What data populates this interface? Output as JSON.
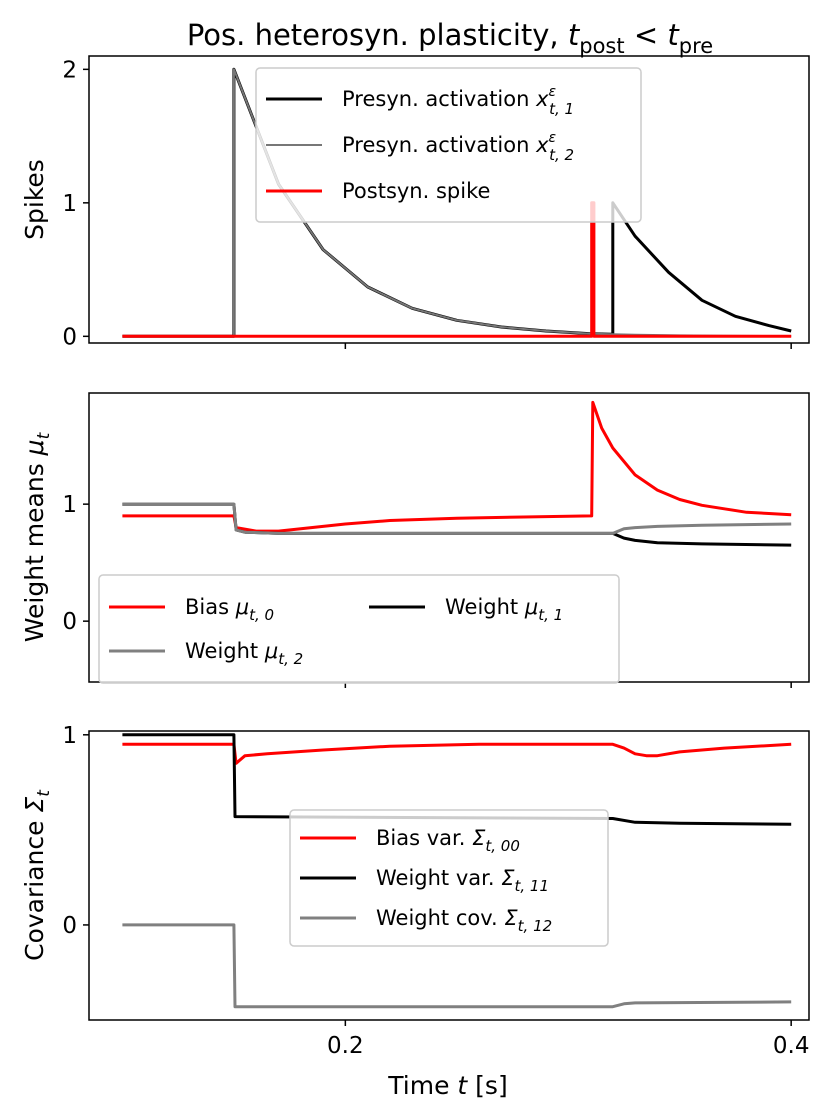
{
  "chart_data": {
    "type": "line",
    "title_parts": {
      "main": "Pos. heterosyn. plasticity, ",
      "t1": "t",
      "sub1": "post",
      "op": " < ",
      "t2": "t",
      "sub2": "pre"
    },
    "xlabel_parts": {
      "pre": "Time ",
      "var": "t",
      "post": " [s]"
    },
    "xlim": [
      0.085,
      0.408
    ],
    "xticks": [
      0.2,
      0.4
    ],
    "xtick_labels": [
      "0.2",
      "0.4"
    ],
    "panels": [
      {
        "id": "spikes",
        "ylabel": "Spikes",
        "ylim": [
          -0.05,
          2.1
        ],
        "yticks": [
          0,
          1,
          2
        ],
        "ytick_labels": [
          "0",
          "1",
          "2"
        ],
        "legend_position": "top-right",
        "legend_columns": 1,
        "series": [
          {
            "name": "Presyn. activation x^ε_{t,1}",
            "legend": {
              "base": "Presyn. activation ",
              "sym": "x",
              "sup": "ε",
              "sub": "t, 1"
            },
            "color": "#000000",
            "width": 3,
            "points": [
              [
                0.1,
                0
              ],
              [
                0.15,
                0
              ],
              [
                0.15,
                2
              ],
              [
                0.17,
                1.14
              ],
              [
                0.19,
                0.65
              ],
              [
                0.21,
                0.37
              ],
              [
                0.23,
                0.21
              ],
              [
                0.25,
                0.12
              ],
              [
                0.27,
                0.07
              ],
              [
                0.29,
                0.04
              ],
              [
                0.31,
                0.02
              ],
              [
                0.32,
                0.015
              ],
              [
                0.32,
                1.0
              ],
              [
                0.33,
                0.75
              ],
              [
                0.345,
                0.48
              ],
              [
                0.36,
                0.27
              ],
              [
                0.375,
                0.15
              ],
              [
                0.39,
                0.08
              ],
              [
                0.4,
                0.04
              ]
            ]
          },
          {
            "name": "Presyn. activation x^ε_{t,2}",
            "legend": {
              "base": "Presyn. activation ",
              "sym": "x",
              "sup": "ε",
              "sub": "t, 2"
            },
            "color": "#777777",
            "width": 2,
            "points": [
              [
                0.1,
                0
              ],
              [
                0.15,
                0
              ],
              [
                0.15,
                2
              ],
              [
                0.17,
                1.14
              ],
              [
                0.19,
                0.65
              ],
              [
                0.21,
                0.37
              ],
              [
                0.23,
                0.21
              ],
              [
                0.25,
                0.12
              ],
              [
                0.27,
                0.07
              ],
              [
                0.29,
                0.04
              ],
              [
                0.31,
                0.02
              ],
              [
                0.33,
                0.012
              ],
              [
                0.35,
                0.007
              ],
              [
                0.37,
                0.004
              ],
              [
                0.4,
                0.002
              ]
            ]
          },
          {
            "name": "Postsyn. spike",
            "legend": {
              "base": "Postsyn. spike"
            },
            "color": "#ff0000",
            "width": 3,
            "points": [
              [
                0.1,
                0
              ],
              [
                0.3105,
                0
              ],
              [
                0.3105,
                1
              ],
              [
                0.3115,
                1
              ],
              [
                0.3115,
                0
              ],
              [
                0.4,
                0
              ]
            ]
          }
        ]
      },
      {
        "id": "means",
        "ylabel_parts": {
          "pre": "Weight means ",
          "sym": "μ",
          "sub": "t"
        },
        "ylim": [
          -0.52,
          1.95
        ],
        "yticks": [
          0,
          1
        ],
        "ytick_labels": [
          "0",
          "1"
        ],
        "legend_position": "lower-left",
        "legend_columns": 2,
        "series": [
          {
            "name": "Bias μ_{t,0}",
            "legend": {
              "base": "Bias ",
              "sym": "μ",
              "sub": "t, 0"
            },
            "color": "#ff0000",
            "width": 3,
            "points": [
              [
                0.1,
                0.9
              ],
              [
                0.15,
                0.9
              ],
              [
                0.151,
                0.8
              ],
              [
                0.16,
                0.77
              ],
              [
                0.17,
                0.77
              ],
              [
                0.18,
                0.79
              ],
              [
                0.2,
                0.83
              ],
              [
                0.22,
                0.86
              ],
              [
                0.25,
                0.88
              ],
              [
                0.28,
                0.89
              ],
              [
                0.31,
                0.9
              ],
              [
                0.3105,
                0.9
              ],
              [
                0.311,
                1.87
              ],
              [
                0.315,
                1.65
              ],
              [
                0.32,
                1.48
              ],
              [
                0.33,
                1.25
              ],
              [
                0.34,
                1.12
              ],
              [
                0.35,
                1.04
              ],
              [
                0.36,
                0.99
              ],
              [
                0.37,
                0.96
              ],
              [
                0.38,
                0.93
              ],
              [
                0.39,
                0.92
              ],
              [
                0.4,
                0.91
              ]
            ]
          },
          {
            "name": "Weight μ_{t,1}",
            "legend": {
              "base": "Weight ",
              "sym": "μ",
              "sub": "t, 1"
            },
            "color": "#000000",
            "width": 3,
            "points": [
              [
                0.1,
                1
              ],
              [
                0.15,
                1
              ],
              [
                0.151,
                0.78
              ],
              [
                0.155,
                0.76
              ],
              [
                0.17,
                0.75
              ],
              [
                0.3,
                0.75
              ],
              [
                0.32,
                0.75
              ],
              [
                0.325,
                0.71
              ],
              [
                0.33,
                0.69
              ],
              [
                0.34,
                0.67
              ],
              [
                0.36,
                0.66
              ],
              [
                0.4,
                0.65
              ]
            ]
          },
          {
            "name": "Weight μ_{t,2}",
            "legend": {
              "base": "Weight ",
              "sym": "μ",
              "sub": "t, 2"
            },
            "color": "#808080",
            "width": 3,
            "points": [
              [
                0.1,
                1
              ],
              [
                0.15,
                1
              ],
              [
                0.151,
                0.78
              ],
              [
                0.155,
                0.76
              ],
              [
                0.17,
                0.75
              ],
              [
                0.3,
                0.75
              ],
              [
                0.32,
                0.75
              ],
              [
                0.325,
                0.79
              ],
              [
                0.33,
                0.8
              ],
              [
                0.34,
                0.81
              ],
              [
                0.36,
                0.82
              ],
              [
                0.4,
                0.83
              ]
            ]
          }
        ]
      },
      {
        "id": "covariance",
        "ylabel_parts": {
          "pre": "Covariance ",
          "sym": "Σ",
          "sub": "t"
        },
        "ylim": [
          -0.5,
          1.02
        ],
        "yticks": [
          0,
          1
        ],
        "ytick_labels": [
          "0",
          "1"
        ],
        "legend_position": "center",
        "legend_columns": 1,
        "series": [
          {
            "name": "Bias var. Σ_{t,00}",
            "legend": {
              "base": "Bias var. ",
              "sym": "Σ",
              "sub": "t, 00"
            },
            "color": "#ff0000",
            "width": 3,
            "points": [
              [
                0.1,
                0.95
              ],
              [
                0.15,
                0.95
              ],
              [
                0.151,
                0.85
              ],
              [
                0.155,
                0.89
              ],
              [
                0.165,
                0.9
              ],
              [
                0.19,
                0.92
              ],
              [
                0.22,
                0.94
              ],
              [
                0.26,
                0.95
              ],
              [
                0.3,
                0.95
              ],
              [
                0.32,
                0.95
              ],
              [
                0.325,
                0.93
              ],
              [
                0.33,
                0.9
              ],
              [
                0.335,
                0.89
              ],
              [
                0.34,
                0.89
              ],
              [
                0.35,
                0.91
              ],
              [
                0.37,
                0.93
              ],
              [
                0.4,
                0.95
              ]
            ]
          },
          {
            "name": "Weight var. Σ_{t,11}",
            "legend": {
              "base": "Weight var. ",
              "sym": "Σ",
              "sub": "t, 11"
            },
            "color": "#000000",
            "width": 3,
            "points": [
              [
                0.1,
                1
              ],
              [
                0.15,
                1
              ],
              [
                0.1505,
                0.57
              ],
              [
                0.32,
                0.56
              ],
              [
                0.33,
                0.54
              ],
              [
                0.35,
                0.535
              ],
              [
                0.4,
                0.53
              ]
            ]
          },
          {
            "name": "Weight cov. Σ_{t,12}",
            "legend": {
              "base": "Weight cov. ",
              "sym": "Σ",
              "sub": "t, 12"
            },
            "color": "#808080",
            "width": 3,
            "points": [
              [
                0.1,
                0
              ],
              [
                0.15,
                0
              ],
              [
                0.1505,
                -0.43
              ],
              [
                0.32,
                -0.43
              ],
              [
                0.325,
                -0.415
              ],
              [
                0.33,
                -0.41
              ],
              [
                0.4,
                -0.405
              ]
            ]
          }
        ]
      }
    ]
  }
}
